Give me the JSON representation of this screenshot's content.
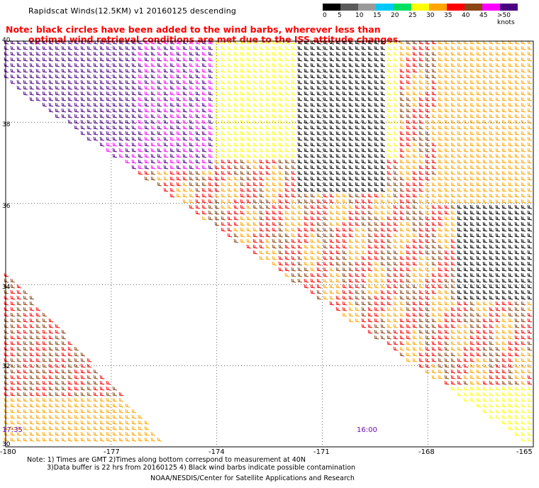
{
  "header": {
    "title": "Rapidscat Winds(12.5KM) v1 20160125 descending",
    "note_line1": "Note: black circles have been added to the wind barbs, wherever less than",
    "note_line2": "optimal wind retrieval conditions are met due to the ISS attitude changes."
  },
  "legend": {
    "labels": [
      "0",
      "5",
      "10",
      "15",
      "20",
      "25",
      "30",
      "35",
      "40",
      "45",
      ">50 knots"
    ],
    "colors": [
      "#000000",
      "#5a5a5a",
      "#9a9a9a",
      "#00c8ff",
      "#00e060",
      "#ffff00",
      "#ffa500",
      "#ff0000",
      "#8b4513",
      "#ff00ff",
      "#4b0082"
    ]
  },
  "map": {
    "lat_labels": [
      "40",
      "38",
      "36",
      "34",
      "32",
      "30"
    ],
    "lon_labels": [
      "-180",
      "-177",
      "-174",
      "-171",
      "-168",
      "-165"
    ],
    "lon_range": [
      -180,
      -165
    ],
    "lat_range": [
      30,
      40
    ],
    "time_labels": [
      "17:35",
      "16:00"
    ]
  },
  "footer": {
    "line1": "Note: 1) Times are GMT 2)Times along bottom correspond to measurement at 40N",
    "line2": "3)Data buffer is 22 hrs from 20160125 4) Black wind barbs indicate possible contamination",
    "line3": "NOAA/NESDIS/Center for Satellite Applications and Research"
  }
}
